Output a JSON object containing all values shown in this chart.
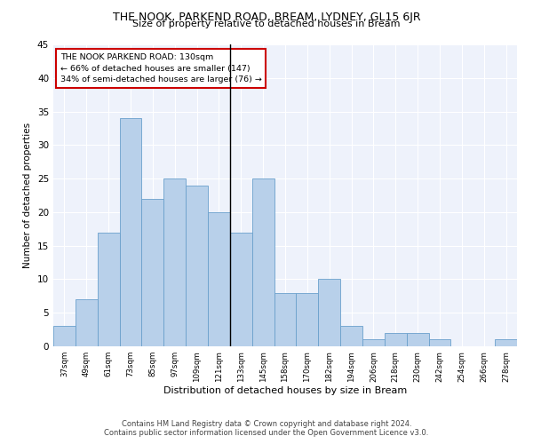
{
  "title1": "THE NOOK, PARKEND ROAD, BREAM, LYDNEY, GL15 6JR",
  "title2": "Size of property relative to detached houses in Bream",
  "xlabel": "Distribution of detached houses by size in Bream",
  "ylabel": "Number of detached properties",
  "bin_labels": [
    "37sqm",
    "49sqm",
    "61sqm",
    "73sqm",
    "85sqm",
    "97sqm",
    "109sqm",
    "121sqm",
    "133sqm",
    "145sqm",
    "158sqm",
    "170sqm",
    "182sqm",
    "194sqm",
    "206sqm",
    "218sqm",
    "230sqm",
    "242sqm",
    "254sqm",
    "266sqm",
    "278sqm"
  ],
  "bar_values": [
    3,
    7,
    17,
    34,
    22,
    25,
    24,
    20,
    17,
    25,
    8,
    8,
    10,
    3,
    1,
    2,
    2,
    1,
    0,
    0,
    1
  ],
  "bar_color": "#b8d0ea",
  "bar_edge_color": "#6aa0cc",
  "vline_x_index": 8,
  "annotation_line1": "THE NOOK PARKEND ROAD: 130sqm",
  "annotation_line2": "← 66% of detached houses are smaller (147)",
  "annotation_line3": "34% of semi-detached houses are larger (76) →",
  "annotation_box_color": "#ffffff",
  "annotation_box_edge_color": "#cc0000",
  "ylim": [
    0,
    45
  ],
  "yticks": [
    0,
    5,
    10,
    15,
    20,
    25,
    30,
    35,
    40,
    45
  ],
  "background_color": "#eef2fb",
  "footer1": "Contains HM Land Registry data © Crown copyright and database right 2024.",
  "footer2": "Contains public sector information licensed under the Open Government Licence v3.0."
}
